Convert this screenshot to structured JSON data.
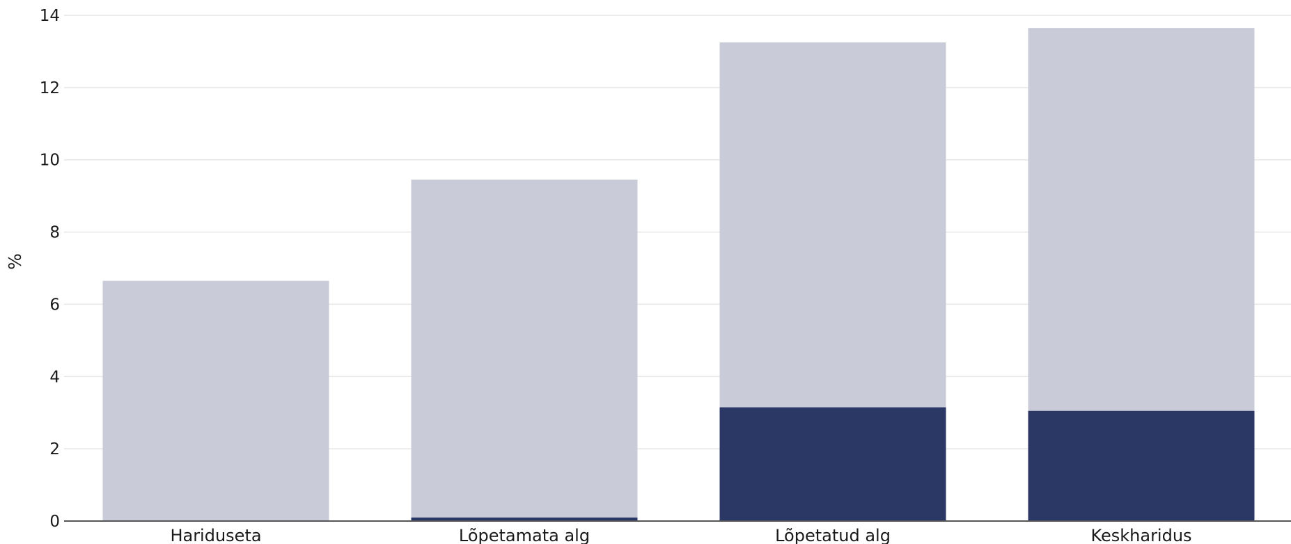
{
  "chart_data": {
    "type": "bar",
    "stacked": true,
    "title": "",
    "xlabel": "",
    "ylabel": "%",
    "ylim": [
      0,
      14
    ],
    "yticks": [
      0,
      2,
      4,
      6,
      8,
      10,
      12,
      14
    ],
    "categories": [
      "Hariduseta",
      "Lõpetamata alg",
      "Lõpetatud alg",
      "Keskharidus"
    ],
    "grid": true,
    "legend": "none",
    "series": [
      {
        "values": [
          0.0,
          0.1,
          3.15,
          3.05
        ],
        "color": "#2b3765"
      },
      {
        "values": [
          6.65,
          9.35,
          10.1,
          10.6
        ],
        "color": "#c9ccd8"
      }
    ],
    "colors": {
      "gridline": "#e6e6e6",
      "baseline": "#555555"
    }
  }
}
